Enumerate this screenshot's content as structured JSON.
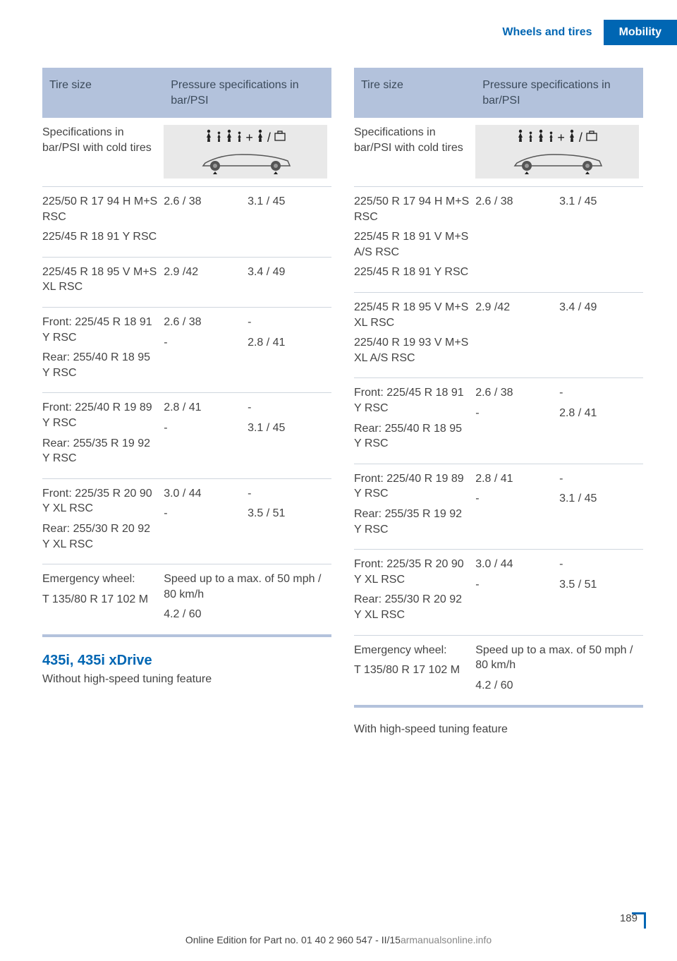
{
  "header": {
    "breadcrumb": "Wheels and tires",
    "current": "Mobility"
  },
  "tableHeaders": {
    "col1": "Tire size",
    "col2": "Pressure specifications in bar/PSI"
  },
  "specRowLabel": "Specifications in bar/PSI with cold tires",
  "leftTable": {
    "rows": [
      {
        "size": "225/50 R 17 94 H M+S RSC\n225/45 R 18 91 Y RSC",
        "p1": "2.6 / 38",
        "p2": "3.1 / 45"
      },
      {
        "size": "225/45 R 18 95 V M+S XL RSC",
        "p1": "2.9 /42",
        "p2": "3.4 / 49"
      },
      {
        "size": "Front: 225/45 R 18 91 Y RSC\nRear: 255/40 R 18 95 Y RSC",
        "p1": "2.6 / 38\n-",
        "p2": "-\n2.8 / 41"
      },
      {
        "size": "Front: 225/40 R 19 89 Y RSC\nRear: 255/35 R 19 92 Y RSC",
        "p1": "2.8 / 41\n-",
        "p2": "-\n3.1 / 45"
      },
      {
        "size": "Front: 225/35 R 20 90 Y XL RSC\nRear: 255/30 R 20 92 Y XL RSC",
        "p1": "3.0 / 44\n-",
        "p2": "-\n3.5 / 51"
      },
      {
        "size": "Emergency wheel:\nT 135/80 R 17 102 M",
        "p1": "Speed up to a max. of 50 mph / 80 km/h\n4.2 / 60",
        "p2": "",
        "merged": true
      }
    ]
  },
  "rightTable": {
    "rows": [
      {
        "size": "225/50 R 17 94 H M+S RSC\n225/45 R 18 91 V M+S A/S RSC\n225/45 R 18 91 Y RSC",
        "p1": "2.6 / 38",
        "p2": "3.1 / 45"
      },
      {
        "size": "225/45 R 18 95 V M+S XL RSC\n225/40 R 19 93 V M+S XL A/S RSC",
        "p1": "2.9 /42",
        "p2": "3.4 / 49"
      },
      {
        "size": "Front: 225/45 R 18 91 Y RSC\nRear: 255/40 R 18 95 Y RSC",
        "p1": "2.6 / 38\n-",
        "p2": "-\n2.8 / 41"
      },
      {
        "size": "Front: 225/40 R 19 89 Y RSC\nRear: 255/35 R 19 92 Y RSC",
        "p1": "2.8 / 41\n-",
        "p2": "-\n3.1 / 45"
      },
      {
        "size": "Front: 225/35 R 20 90 Y XL RSC\nRear: 255/30 R 20 92 Y XL RSC",
        "p1": "3.0 / 44\n-",
        "p2": "-\n3.5 / 51"
      },
      {
        "size": "Emergency wheel:\nT 135/80 R 17 102 M",
        "p1": "Speed up to a max. of 50 mph / 80 km/h\n4.2 / 60",
        "p2": "",
        "merged": true
      }
    ]
  },
  "section": {
    "title": "435i, 435i xDrive",
    "sub": "Without high-speed tuning feature"
  },
  "rightSub": "With high-speed tuning feature",
  "footer": {
    "pageNum": "189",
    "line": "Online Edition for Part no. 01 40 2 960 547 - II/15",
    "watermark": "armanualsonline.info"
  }
}
